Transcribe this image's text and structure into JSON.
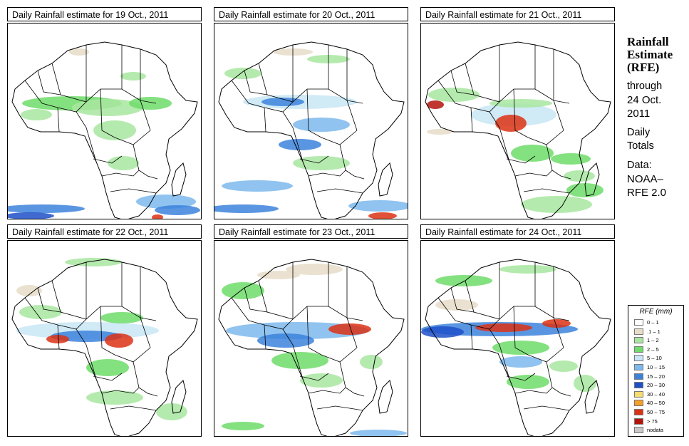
{
  "panels": [
    {
      "title": "Daily Rainfall estimate for  19 Oct., 2011"
    },
    {
      "title": "Daily Rainfall estimate for  20 Oct., 2011"
    },
    {
      "title": "Daily Rainfall estimate for  21 Oct., 2011"
    },
    {
      "title": "Daily Rainfall estimate for  22 Oct., 2011"
    },
    {
      "title": "Daily Rainfall estimate for  23 Oct., 2011"
    },
    {
      "title": "Daily Rainfall estimate for  24 Oct., 2011"
    }
  ],
  "sidebar": {
    "title_line1": "Rainfall",
    "title_line2": "Estimate",
    "title_line3": "(RFE)",
    "through": "through",
    "date_line1": "24 Oct.",
    "date_line2": "2011",
    "daily": "Daily",
    "totals": "Totals",
    "data_label": "Data:",
    "source_line1": "NOAA–",
    "source_line2": "RFE 2.0"
  },
  "legend": {
    "title": "RFE (mm)",
    "items": [
      {
        "label": "0 – 1",
        "color": "#ffffff"
      },
      {
        "label": ".1 – 1",
        "color": "#e6dcc8"
      },
      {
        "label": "1 – 2",
        "color": "#a8e6a0"
      },
      {
        "label": "2 – 5",
        "color": "#6fdc6a"
      },
      {
        "label": "5 – 10",
        "color": "#c8e6f5"
      },
      {
        "label": "10 – 15",
        "color": "#7db9ec"
      },
      {
        "label": "15 – 20",
        "color": "#3c82dc"
      },
      {
        "label": "20 – 30",
        "color": "#1e50c8"
      },
      {
        "label": "30 – 40",
        "color": "#f5dc6e"
      },
      {
        "label": "40 – 50",
        "color": "#f5a028"
      },
      {
        "label": "50 – 75",
        "color": "#dc3214"
      },
      {
        "label": "> 75",
        "color": "#b4140a"
      },
      {
        "label": "nodata",
        "color": "#c8c8c8"
      }
    ]
  }
}
